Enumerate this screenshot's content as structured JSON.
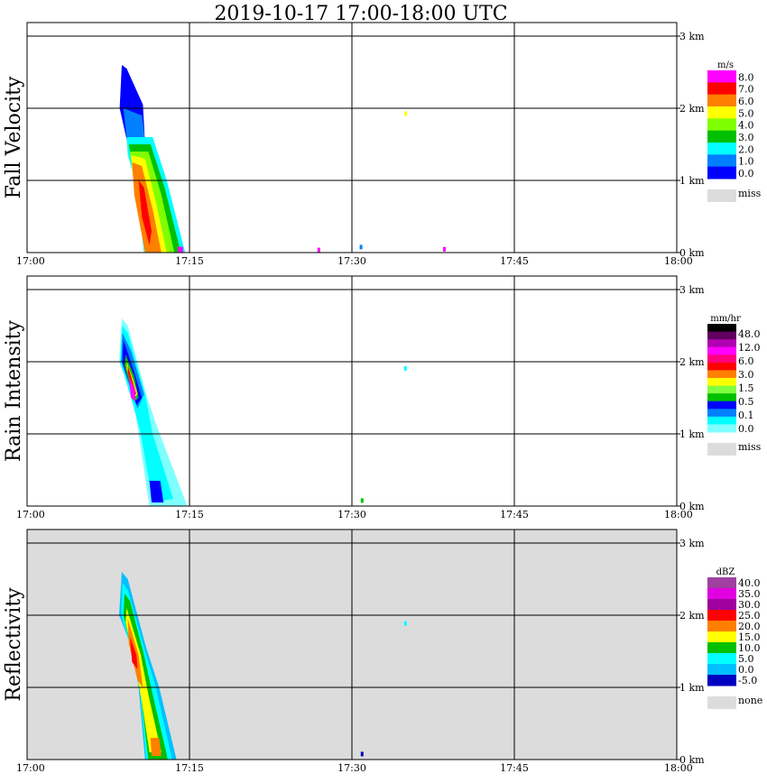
{
  "title": "2019-10-17   17:00-18:00 UTC",
  "chart_data": {
    "type": "heatmap",
    "title": "2019-10-17   17:00-18:00 UTC",
    "x_ticks": [
      "17:00",
      "17:15",
      "17:30",
      "17:45",
      "18:00"
    ],
    "x_range_minutes": [
      0,
      60
    ],
    "y_ticks": [
      "0 km",
      "1 km",
      "2 km",
      "3 km"
    ],
    "y_range_km": [
      0,
      3.19
    ],
    "grid": true,
    "panels": [
      {
        "ylabel": "Fall Velocity",
        "unit": "m/s",
        "background": "#ffffff",
        "legend": {
          "colors": [
            "#ff00ff",
            "#ff0000",
            "#ff8000",
            "#ffff00",
            "#80ff00",
            "#00c000",
            "#00ffff",
            "#0080ff",
            "#0000ff"
          ],
          "labels": [
            "8.0",
            "7.0",
            "6.0",
            "5.0",
            "4.0",
            "3.0",
            "2.0",
            "1.0",
            "0.0"
          ],
          "missing_label": "miss"
        },
        "layers": [
          {
            "color": "#0000ff",
            "points": [
              [
                8.75,
                2.6
              ],
              [
                9.2,
                2.55
              ],
              [
                10.7,
                2.05
              ],
              [
                10.9,
                1.5
              ],
              [
                9.3,
                1.5
              ],
              [
                8.55,
                2.0
              ]
            ]
          },
          {
            "color": "#0080ff",
            "points": [
              [
                8.9,
                2.0
              ],
              [
                10.6,
                1.9
              ],
              [
                10.9,
                1.55
              ],
              [
                9.3,
                1.45
              ]
            ]
          },
          {
            "color": "#00ffff",
            "points": [
              [
                9.2,
                1.6
              ],
              [
                11.6,
                1.6
              ],
              [
                12.9,
                1.0
              ],
              [
                14.6,
                0
              ],
              [
                10.8,
                0
              ],
              [
                10.0,
                1.0
              ],
              [
                9.3,
                1.35
              ]
            ]
          },
          {
            "color": "#00c000",
            "points": [
              [
                9.4,
                1.5
              ],
              [
                11.4,
                1.5
              ],
              [
                12.7,
                0.9
              ],
              [
                14.2,
                0
              ],
              [
                11.0,
                0
              ],
              [
                10.0,
                0.9
              ]
            ]
          },
          {
            "color": "#80ff00",
            "points": [
              [
                9.5,
                1.4
              ],
              [
                11.2,
                1.4
              ],
              [
                12.4,
                0.8
              ],
              [
                13.6,
                0
              ],
              [
                11.0,
                0
              ],
              [
                10.0,
                0.8
              ]
            ]
          },
          {
            "color": "#ffff00",
            "points": [
              [
                9.6,
                1.35
              ],
              [
                10.9,
                1.3
              ],
              [
                11.9,
                0.7
              ],
              [
                12.9,
                0
              ],
              [
                10.9,
                0
              ],
              [
                9.9,
                0.9
              ]
            ]
          },
          {
            "color": "#ff8000",
            "points": [
              [
                9.7,
                1.25
              ],
              [
                10.6,
                1.2
              ],
              [
                11.6,
                0.6
              ],
              [
                12.4,
                0
              ],
              [
                10.9,
                0
              ],
              [
                9.9,
                0.8
              ]
            ]
          },
          {
            "color": "#ff0000",
            "points": [
              [
                10.3,
                1.0
              ],
              [
                10.8,
                0.9
              ],
              [
                11.5,
                0.3
              ],
              [
                11.3,
                0.1
              ],
              [
                10.6,
                0.5
              ]
            ]
          },
          {
            "color": "#ff00ff",
            "points": [
              [
                13.9,
                0.08
              ],
              [
                14.4,
                0.08
              ],
              [
                14.4,
                0
              ],
              [
                13.9,
                0
              ]
            ]
          }
        ],
        "speckles": [
          {
            "t": 34.9,
            "h": 1.92,
            "color": "#ffff00"
          },
          {
            "t": 30.8,
            "h": 0.07,
            "color": "#0080ff"
          },
          {
            "t": 26.9,
            "h": 0.03,
            "color": "#ff00ff"
          },
          {
            "t": 38.5,
            "h": 0.04,
            "color": "#ff00ff"
          }
        ]
      },
      {
        "ylabel": "Rain Intensity",
        "unit": "mm/hr",
        "background": "#ffffff",
        "legend": {
          "colors": [
            "#000000",
            "#600060",
            "#b000b0",
            "#ff00ff",
            "#ff0080",
            "#ff0000",
            "#ff8000",
            "#ffff00",
            "#80ff40",
            "#00c000",
            "#0000ff",
            "#0080ff",
            "#00ffff",
            "#80ffff"
          ],
          "labels": [
            "48.0",
            "12.0",
            "6.0",
            "3.0",
            "1.5",
            "0.5",
            "0.1",
            "0.0"
          ],
          "missing_label": "miss"
        },
        "layers": [
          {
            "color": "#80ffff",
            "points": [
              [
                8.75,
                2.6
              ],
              [
                9.3,
                2.5
              ],
              [
                11.0,
                1.55
              ],
              [
                12.0,
                1.1
              ],
              [
                14.8,
                0
              ],
              [
                11.3,
                0
              ],
              [
                10.3,
                1.0
              ],
              [
                9.8,
                1.5
              ],
              [
                8.5,
                2.0
              ]
            ]
          },
          {
            "color": "#00ffff",
            "points": [
              [
                8.8,
                2.5
              ],
              [
                9.3,
                2.4
              ],
              [
                10.9,
                1.55
              ],
              [
                11.6,
                1.0
              ],
              [
                13.5,
                0.1
              ],
              [
                11.6,
                0.05
              ],
              [
                10.5,
                1.0
              ],
              [
                9.8,
                1.4
              ],
              [
                8.6,
                2.0
              ]
            ]
          },
          {
            "color": "#0080ff",
            "points": [
              [
                8.8,
                2.4
              ],
              [
                9.6,
                2.15
              ],
              [
                10.8,
                1.55
              ],
              [
                10.2,
                1.35
              ],
              [
                8.7,
                2.0
              ]
            ]
          },
          {
            "color": "#0000ff",
            "points": [
              [
                8.9,
                2.3
              ],
              [
                9.8,
                1.9
              ],
              [
                10.6,
                1.5
              ],
              [
                10.1,
                1.4
              ],
              [
                8.8,
                2.0
              ]
            ]
          },
          {
            "color": "#0000ff",
            "points": [
              [
                11.3,
                0.35
              ],
              [
                12.3,
                0.35
              ],
              [
                12.6,
                0.05
              ],
              [
                11.5,
                0.05
              ]
            ]
          },
          {
            "color": "#00c000",
            "points": [
              [
                9.1,
                2.1
              ],
              [
                9.9,
                1.8
              ],
              [
                10.3,
                1.5
              ],
              [
                9.9,
                1.45
              ],
              [
                9.0,
                1.95
              ]
            ]
          },
          {
            "color": "#ffff00",
            "points": [
              [
                9.2,
                2.0
              ],
              [
                9.8,
                1.75
              ],
              [
                10.2,
                1.55
              ],
              [
                9.9,
                1.5
              ],
              [
                9.2,
                1.9
              ]
            ]
          },
          {
            "color": "#ff0000",
            "points": [
              [
                9.3,
                1.95
              ],
              [
                9.8,
                1.7
              ],
              [
                10.1,
                1.55
              ],
              [
                9.8,
                1.55
              ],
              [
                9.3,
                1.85
              ]
            ]
          },
          {
            "color": "#ff00ff",
            "points": [
              [
                9.4,
                1.8
              ],
              [
                10.0,
                1.6
              ],
              [
                10.0,
                1.45
              ],
              [
                9.6,
                1.5
              ]
            ]
          }
        ],
        "speckles": [
          {
            "t": 34.9,
            "h": 1.9,
            "color": "#00ffff"
          },
          {
            "t": 30.9,
            "h": 0.07,
            "color": "#00c000"
          }
        ]
      },
      {
        "ylabel": "Reflectivity",
        "unit": "dBZ",
        "background": "#dcdcdc",
        "legend": {
          "colors": [
            "#a040a0",
            "#e000e0",
            "#a000a0",
            "#ff0000",
            "#ff8000",
            "#ffff00",
            "#00c000",
            "#00ffff",
            "#00c0ff",
            "#0000c0"
          ],
          "labels": [
            "40.0",
            "35.0",
            "30.0",
            "25.0",
            "20.0",
            "15.0",
            "10.0",
            "5.0",
            "0.0",
            "-5.0"
          ],
          "missing_label": "none"
        },
        "layers": [
          {
            "color": "#00c0ff",
            "points": [
              [
                8.75,
                2.6
              ],
              [
                9.3,
                2.5
              ],
              [
                11.0,
                1.55
              ],
              [
                12.2,
                1.0
              ],
              [
                13.8,
                0
              ],
              [
                10.9,
                0
              ],
              [
                10.3,
                1.0
              ],
              [
                9.8,
                1.5
              ],
              [
                8.5,
                2.0
              ]
            ]
          },
          {
            "color": "#00ffff",
            "points": [
              [
                8.8,
                2.45
              ],
              [
                9.3,
                2.35
              ],
              [
                10.9,
                1.5
              ],
              [
                11.9,
                1.0
              ],
              [
                13.4,
                0
              ],
              [
                11.0,
                0
              ],
              [
                10.4,
                1.0
              ],
              [
                9.9,
                1.4
              ],
              [
                8.7,
                2.0
              ]
            ]
          },
          {
            "color": "#00c000",
            "points": [
              [
                9.0,
                2.3
              ],
              [
                9.5,
                2.2
              ],
              [
                10.8,
                1.45
              ],
              [
                11.6,
                0.9
              ],
              [
                13.0,
                0
              ],
              [
                11.2,
                0
              ],
              [
                10.5,
                0.9
              ],
              [
                9.9,
                1.35
              ],
              [
                8.9,
                2.0
              ]
            ]
          },
          {
            "color": "#ffff00",
            "points": [
              [
                9.2,
                2.1
              ],
              [
                10.5,
                1.45
              ],
              [
                11.2,
                0.9
              ],
              [
                12.4,
                0.1
              ],
              [
                11.3,
                0.1
              ],
              [
                10.6,
                0.8
              ],
              [
                10.0,
                1.3
              ],
              [
                9.1,
                1.9
              ]
            ]
          },
          {
            "color": "#ff8000",
            "points": [
              [
                9.3,
                1.95
              ],
              [
                10.3,
                1.45
              ],
              [
                10.7,
                1.0
              ],
              [
                10.2,
                1.1
              ],
              [
                9.4,
                1.6
              ]
            ]
          },
          {
            "color": "#ff0000",
            "points": [
              [
                9.5,
                1.7
              ],
              [
                10.1,
                1.45
              ],
              [
                10.2,
                1.25
              ],
              [
                9.7,
                1.35
              ]
            ]
          },
          {
            "color": "#ff8000",
            "points": [
              [
                11.4,
                0.3
              ],
              [
                12.2,
                0.3
              ],
              [
                12.4,
                0.05
              ],
              [
                11.5,
                0.05
              ]
            ]
          }
        ],
        "speckles": [
          {
            "t": 34.9,
            "h": 1.88,
            "color": "#00ffff"
          },
          {
            "t": 30.9,
            "h": 0.07,
            "color": "#0000c0"
          }
        ]
      }
    ]
  }
}
